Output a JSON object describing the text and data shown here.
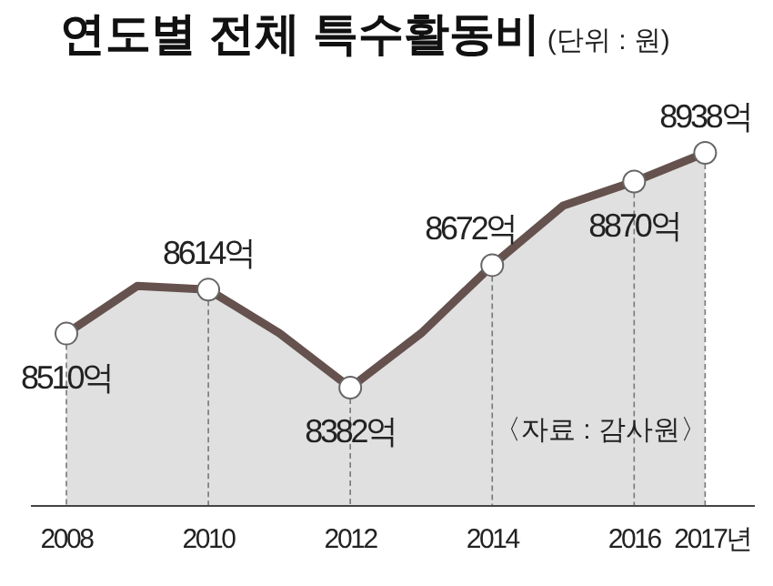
{
  "chart_data": {
    "type": "area",
    "title": "연도별 전체 특수활동비",
    "subtitle": "(단위 : 원)",
    "x": [
      2008,
      2009,
      2010,
      2011,
      2012,
      2013,
      2014,
      2015,
      2016,
      2017
    ],
    "series": [
      {
        "color": "#65514d",
        "values": [
          8510,
          8623,
          8614,
          8511,
          8382,
          8511,
          8672,
          8813,
          8870,
          8938
        ],
        "value_labels": [
          "8510억",
          null,
          "8614억",
          null,
          "8382억",
          null,
          "8672억",
          null,
          "8870억",
          "8938억"
        ]
      }
    ],
    "xlim": [
      2007.5,
      2017.7
    ],
    "xticks": [
      2008,
      2010,
      2012,
      2014,
      2016,
      {
        "value": 2017,
        "label": "2017년"
      }
    ],
    "tick_labels": "x",
    "marker": "circle",
    "annotations": [
      "〈자료 : 감사원〉"
    ]
  }
}
